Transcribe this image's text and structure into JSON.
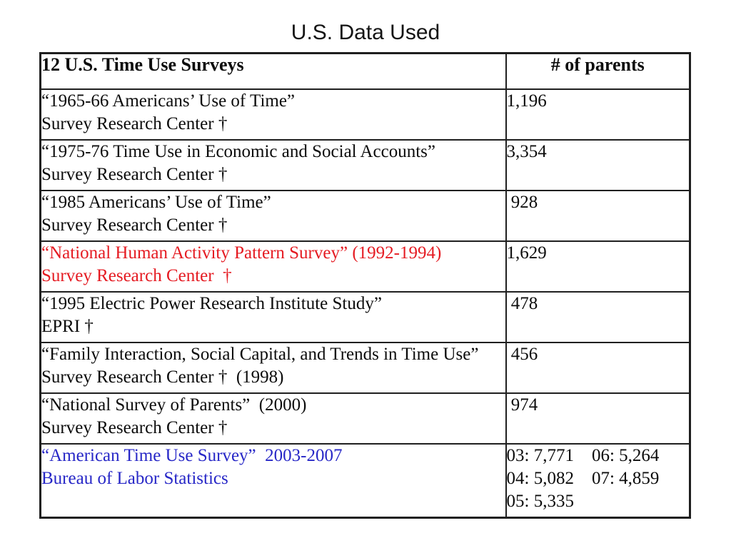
{
  "slide": {
    "title": "U.S. Data Used"
  },
  "table": {
    "header": {
      "surveys": "12 U.S. Time Use Surveys",
      "parents": "# of parents"
    },
    "colors": {
      "highlight_red": "#e51b22",
      "highlight_blue": "#2727c7",
      "text_black": "#0c0c0c",
      "border": "#1f1f1f"
    },
    "rows": [
      {
        "name": "“1965-66 Americans’ Use of Time”",
        "org": "Survey Research Center †",
        "value": "1,196",
        "color": "black"
      },
      {
        "name": "“1975-76 Time Use in Economic and Social Accounts”",
        "org": "Survey Research Center †",
        "value": "3,354",
        "color": "black"
      },
      {
        "name": "“1985 Americans’ Use of Time”",
        "org": "Survey Research Center †",
        "value": " 928",
        "color": "black"
      },
      {
        "name": "“National Human Activity Pattern Survey” (1992-1994)",
        "org": "Survey Research Center  †",
        "value": "1,629",
        "color": "red"
      },
      {
        "name": "“1995 Electric Power Research Institute Study”",
        "org": "EPRI †",
        "value": " 478",
        "color": "black"
      },
      {
        "name": "“Family Interaction, Social Capital, and Trends in Time Use”",
        "org": "Survey Research Center †  (1998)",
        "value": " 456",
        "color": "black"
      },
      {
        "name": "“National Survey of Parents”  (2000)",
        "org": "Survey Research Center †",
        "value": " 974",
        "color": "black"
      },
      {
        "name": "“American Time Use Survey”  2003-2007",
        "org": "Bureau of Labor Statistics",
        "value_lines": [
          "03: 7,771    06: 5,264",
          "04: 5,082    07: 4,859",
          "05: 5,335"
        ],
        "color": "blue"
      }
    ]
  }
}
